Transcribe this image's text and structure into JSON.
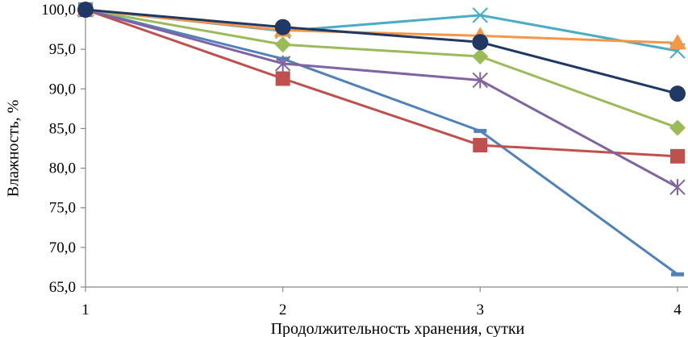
{
  "chart_data": {
    "type": "line",
    "title": "",
    "xlabel": "Продолжительность хранения, сутки",
    "ylabel": "Влажность, %",
    "x": [
      1,
      2,
      3,
      4
    ],
    "x_tick_labels": [
      "1",
      "2",
      "3",
      "4"
    ],
    "ylim": [
      65,
      100
    ],
    "y_ticks": [
      65,
      70,
      75,
      80,
      85,
      90,
      95,
      100
    ],
    "y_tick_labels": [
      "65,0",
      "70,0",
      "75,0",
      "80,0",
      "85,0",
      "90,0",
      "95,0",
      "100,0"
    ],
    "grid": false,
    "legend": "none",
    "series": [
      {
        "color": "#4f81bd",
        "marker": "dash",
        "values": [
          100.0,
          93.8,
          84.7,
          66.6
        ]
      },
      {
        "color": "#c0504d",
        "marker": "square",
        "values": [
          100.0,
          91.3,
          82.9,
          81.5
        ]
      },
      {
        "color": "#9bbb59",
        "marker": "diamond",
        "values": [
          100.0,
          95.6,
          94.1,
          85.1
        ]
      },
      {
        "color": "#8064a2",
        "marker": "star",
        "values": [
          100.0,
          93.2,
          91.1,
          77.6
        ]
      },
      {
        "color": "#4bacc6",
        "marker": "x",
        "values": [
          100.0,
          97.3,
          99.3,
          94.8
        ]
      },
      {
        "color": "#f79646",
        "marker": "triangle",
        "values": [
          100.0,
          97.4,
          96.7,
          95.8
        ]
      },
      {
        "color": "#1f3864",
        "marker": "circle",
        "values": [
          100.0,
          97.8,
          95.9,
          89.4
        ]
      }
    ]
  }
}
